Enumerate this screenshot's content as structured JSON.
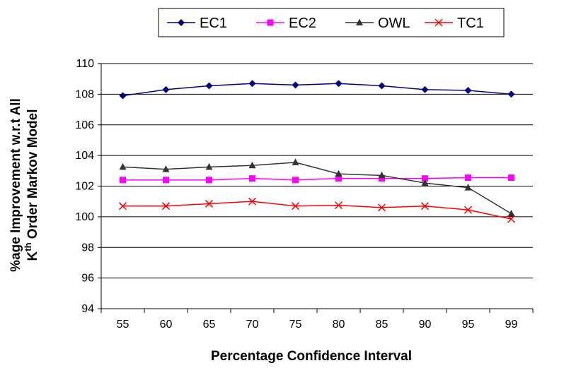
{
  "chart_data": {
    "type": "line",
    "title": "",
    "categories": [
      "55",
      "60",
      "65",
      "70",
      "75",
      "80",
      "85",
      "90",
      "95",
      "99"
    ],
    "xlabel": "Percentage Confidence Interval",
    "ylabel": {
      "line1": "%age Improvement w.r.t All",
      "line2_prefix": "K",
      "line2_sup": "th",
      "line2_suffix": " Order Markov Model"
    },
    "ylim": [
      94,
      110
    ],
    "yticks": [
      94,
      96,
      98,
      100,
      102,
      104,
      106,
      108,
      110
    ],
    "grid": "horizontal",
    "legend_position": "top",
    "series": [
      {
        "name": "EC1",
        "color": "#000080",
        "marker": "diamond",
        "values": [
          107.9,
          108.3,
          108.55,
          108.7,
          108.6,
          108.7,
          108.55,
          108.3,
          108.25,
          108.0
        ]
      },
      {
        "name": "EC2",
        "color": "#ff00ff",
        "marker": "square",
        "values": [
          102.4,
          102.4,
          102.4,
          102.5,
          102.4,
          102.5,
          102.5,
          102.5,
          102.55,
          102.55
        ]
      },
      {
        "name": "OWL",
        "color": "#333333",
        "marker": "triangle",
        "values": [
          103.25,
          103.1,
          103.25,
          103.35,
          103.55,
          102.8,
          102.7,
          102.2,
          101.9,
          100.2
        ]
      },
      {
        "name": "TC1",
        "color": "#ff0000",
        "marker": "x",
        "values": [
          100.7,
          100.7,
          100.85,
          101.0,
          100.7,
          100.75,
          100.6,
          100.7,
          100.45,
          99.85
        ]
      }
    ]
  }
}
